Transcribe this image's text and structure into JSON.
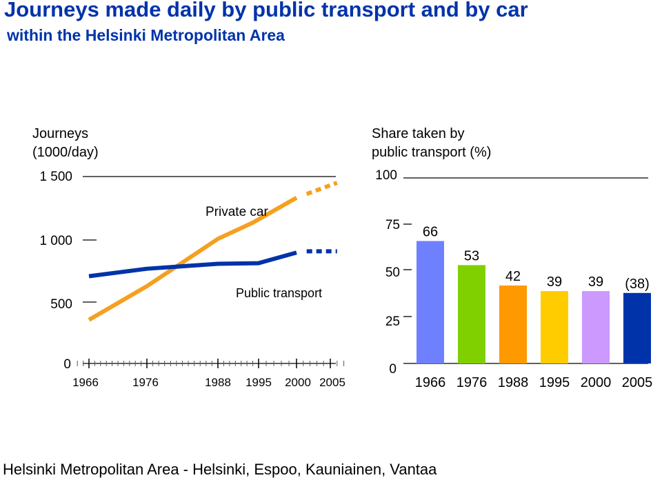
{
  "title": "Journeys made daily by public transport and by car",
  "subtitle": "within the Helsinki Metropolitan Area",
  "footer": "Helsinki Metropolitan Area - Helsinki, Espoo, Kauniainen, Vantaa",
  "colors": {
    "title": "#0033aa",
    "car": "#f5a020",
    "public": "#0033a8"
  },
  "chart_data": [
    {
      "type": "line",
      "ylabel_line1": "Journeys",
      "ylabel_line2": "(1000/day)",
      "ylim": [
        0,
        1500
      ],
      "yticks": [
        "0",
        "500",
        "1 000",
        "1 500"
      ],
      "xlim": [
        1964,
        2009
      ],
      "xticks": [
        "1966",
        "1976",
        "1988",
        "1995",
        "2000",
        "2005"
      ],
      "series": [
        {
          "name": "Private car",
          "color": "#f5a020",
          "x": [
            1966,
            1976,
            1988,
            1994,
            2000
          ],
          "y": [
            350,
            620,
            1000,
            1130,
            1330
          ],
          "projection": {
            "x": [
              2001.5,
              2006
            ],
            "y": [
              1360,
              1450
            ]
          }
        },
        {
          "name": "Public transport",
          "color": "#0033a8",
          "x": [
            1966,
            1976,
            1988,
            1995,
            2000
          ],
          "y": [
            700,
            760,
            800,
            805,
            890
          ],
          "projection": {
            "x": [
              2001.5,
              2006
            ],
            "y": [
              900,
              900
            ]
          }
        }
      ]
    },
    {
      "type": "bar",
      "ylabel_line1": "Share taken by",
      "ylabel_line2": "public transport (%)",
      "ylim": [
        0,
        100
      ],
      "yticks": [
        "0",
        "25",
        "50",
        "75",
        "100"
      ],
      "categories": [
        "1966",
        "1976",
        "1988",
        "1995",
        "2000",
        "2005"
      ],
      "values": [
        66,
        53,
        42,
        39,
        39,
        38
      ],
      "labels": [
        "66",
        "53",
        "42",
        "39",
        "39",
        "(38)"
      ],
      "colors": [
        "#6f80ff",
        "#80d000",
        "#ff9900",
        "#ffcc00",
        "#cc99ff",
        "#0033aa"
      ]
    }
  ]
}
